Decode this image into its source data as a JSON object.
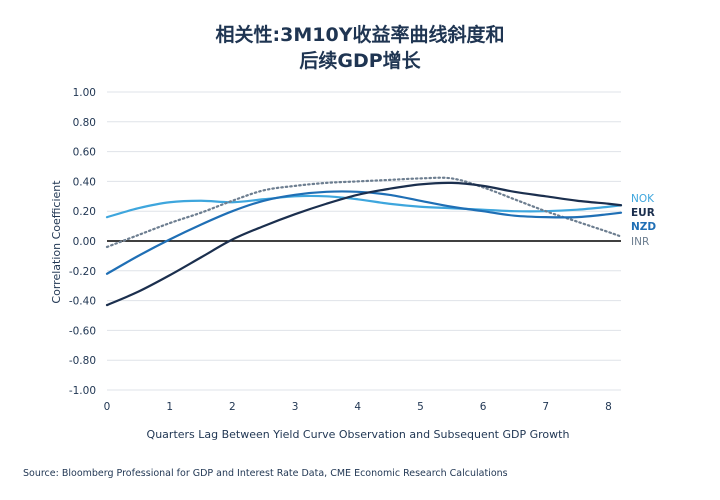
{
  "chart_data": {
    "type": "line",
    "title_line1": "相关性:3M10Y收益率曲线斜度和",
    "title_line2": "后续GDP增长",
    "xlabel": "Quarters Lag Between Yield Curve Observation and Subsequent GDP Growth",
    "ylabel": "Correlation Coefficient",
    "source": "Source: Bloomberg Professional for GDP and Interest Rate Data, CME Economic Research Calculations",
    "xlim": [
      0,
      8.2
    ],
    "ylim": [
      -1.0,
      1.0
    ],
    "x_ticks": [
      "0",
      "1",
      "2",
      "3",
      "4",
      "5",
      "6",
      "7",
      "8"
    ],
    "y_ticks": [
      "1.00",
      "0.80",
      "0.60",
      "0.40",
      "0.20",
      "0.00",
      "-0.20",
      "-0.40",
      "-0.60",
      "-0.80",
      "-1.00"
    ],
    "grid": "horizontal",
    "legend": "right, labels at line ends",
    "x": [
      0,
      0.5,
      1,
      1.5,
      2,
      2.5,
      3,
      3.5,
      4,
      4.5,
      5,
      5.5,
      6,
      6.5,
      7,
      7.5,
      8,
      8.2
    ],
    "series": [
      {
        "name": "NOK",
        "color": "#3ea6dd",
        "dash": "solid",
        "values": [
          0.16,
          0.22,
          0.26,
          0.27,
          0.26,
          0.28,
          0.3,
          0.3,
          0.28,
          0.25,
          0.23,
          0.22,
          0.21,
          0.2,
          0.2,
          0.21,
          0.23,
          0.24
        ]
      },
      {
        "name": "EUR",
        "color": "#1b2f4e",
        "dash": "solid",
        "values": [
          -0.43,
          -0.34,
          -0.23,
          -0.11,
          0.01,
          0.1,
          0.18,
          0.25,
          0.31,
          0.35,
          0.38,
          0.39,
          0.37,
          0.33,
          0.3,
          0.27,
          0.25,
          0.24
        ]
      },
      {
        "name": "NZD",
        "color": "#1f6fb5",
        "dash": "solid",
        "values": [
          -0.22,
          -0.1,
          0.01,
          0.11,
          0.2,
          0.27,
          0.31,
          0.33,
          0.33,
          0.31,
          0.27,
          0.23,
          0.2,
          0.17,
          0.16,
          0.16,
          0.18,
          0.19
        ]
      },
      {
        "name": "INR",
        "color": "#6d7e90",
        "dash": "dotted",
        "values": [
          -0.04,
          0.04,
          0.12,
          0.19,
          0.27,
          0.34,
          0.37,
          0.39,
          0.4,
          0.41,
          0.42,
          0.42,
          0.36,
          0.28,
          0.2,
          0.13,
          0.06,
          0.03
        ]
      }
    ]
  }
}
